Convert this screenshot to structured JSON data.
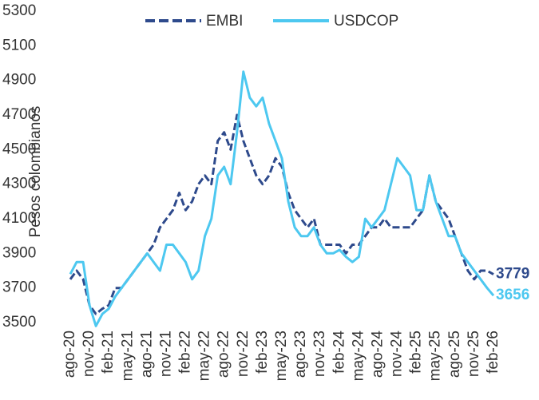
{
  "chart_data": {
    "type": "line",
    "y_label": "Pesos colombianos",
    "categories": [
      "ago-20",
      null,
      null,
      "nov-20",
      null,
      null,
      "feb-21",
      null,
      null,
      "may-21",
      null,
      null,
      "ago-21",
      null,
      null,
      "nov-21",
      null,
      null,
      "feb-22",
      null,
      null,
      "may-22",
      null,
      null,
      "ago-22",
      null,
      null,
      "nov-22",
      null,
      null,
      "feb-23",
      null,
      null,
      "may-23",
      null,
      null,
      "ago-23",
      null,
      null,
      "nov-23",
      null,
      null,
      "feb-24",
      null,
      null,
      "may-24",
      null,
      null,
      "ago-24",
      null,
      null,
      "nov-24",
      null,
      null,
      "feb-25",
      null,
      null,
      "may-25",
      null,
      null,
      "ago-25",
      null,
      null,
      "nov-25",
      null,
      null,
      "feb-26"
    ],
    "series": [
      {
        "name": "EMBI",
        "color": "#2e4a8c",
        "dashed": true,
        "values": [
          3750,
          3800,
          3750,
          3600,
          3550,
          3580,
          3600,
          3700,
          3700,
          3750,
          3800,
          3850,
          3900,
          3950,
          4050,
          4100,
          4150,
          4250,
          4150,
          4200,
          4300,
          4350,
          4300,
          4550,
          4600,
          4500,
          4700,
          4550,
          4450,
          4350,
          4300,
          4350,
          4450,
          4400,
          4250,
          4150,
          4100,
          4050,
          4100,
          3950,
          3950,
          3950,
          3950,
          3900,
          3950,
          3950,
          4000,
          4050,
          4050,
          4100,
          4050,
          4050,
          4050,
          4050,
          4100,
          4150,
          4350,
          4200,
          4150,
          4100,
          4000,
          3900,
          3800,
          3750,
          3800,
          3800,
          3779
        ]
      },
      {
        "name": "USDCOP",
        "color": "#4dc8f0",
        "dashed": false,
        "values": [
          3780,
          3850,
          3850,
          3600,
          3480,
          3550,
          3580,
          3650,
          3700,
          3750,
          3800,
          3850,
          3900,
          3850,
          3800,
          3950,
          3950,
          3900,
          3850,
          3750,
          3800,
          4000,
          4100,
          4350,
          4400,
          4300,
          4600,
          4950,
          4800,
          4750,
          4800,
          4650,
          4550,
          4450,
          4200,
          4050,
          4000,
          4000,
          4050,
          3950,
          3900,
          3900,
          3920,
          3880,
          3850,
          3880,
          4100,
          4050,
          4100,
          4150,
          4300,
          4450,
          4400,
          4350,
          4150,
          4150,
          4350,
          4200,
          4100,
          4000,
          4000,
          3900,
          3850,
          3800,
          3750,
          3700,
          3656
        ]
      }
    ],
    "ylim": [
      3500,
      5300
    ],
    "yticks": [
      3500,
      3700,
      3900,
      4100,
      4300,
      4500,
      4700,
      4900,
      5100,
      5300
    ],
    "legend": "top"
  }
}
